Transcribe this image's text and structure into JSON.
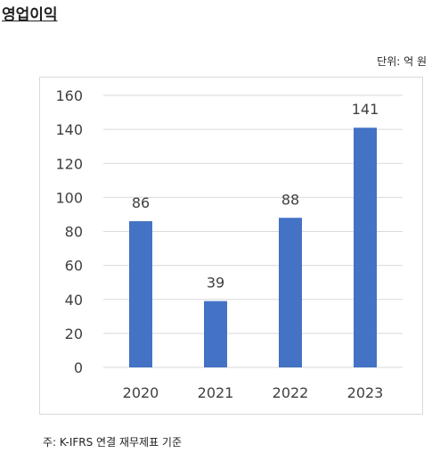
{
  "header": {
    "title": "영업이익"
  },
  "unit_label": "단위: 억 원",
  "footnote": "주: K-IFRS 연결 재무제표 기준",
  "colors": {
    "bar": "#4472C4",
    "grid": "#d9d9d9",
    "text": "#404040"
  },
  "chart_data": {
    "type": "bar",
    "title": "영업이익",
    "xlabel": "",
    "ylabel": "",
    "categories": [
      "2020",
      "2021",
      "2022",
      "2023"
    ],
    "values": [
      86,
      39,
      88,
      141
    ],
    "ylim": [
      0,
      160
    ],
    "yticks": [
      0,
      20,
      40,
      60,
      80,
      100,
      120,
      140,
      160
    ],
    "grid": true,
    "data_labels": true
  }
}
